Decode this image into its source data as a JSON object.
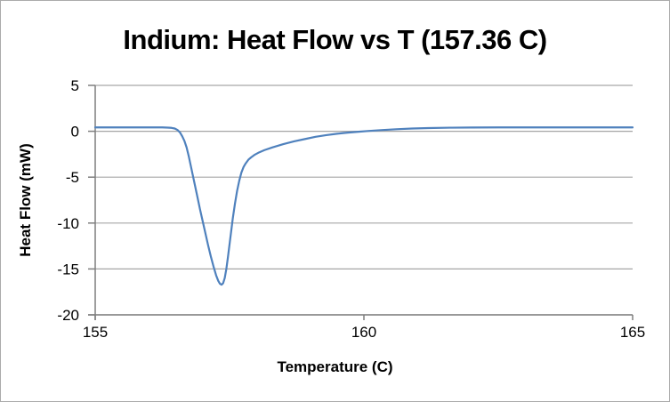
{
  "chart_data": {
    "type": "line",
    "title": "Indium: Heat Flow vs T (157.36 C)",
    "xlabel": "Temperature (C)",
    "ylabel": "Heat Flow (mW)",
    "xlim": [
      155,
      165
    ],
    "ylim": [
      -20,
      5
    ],
    "xticks": [
      155,
      160,
      165
    ],
    "yticks": [
      5,
      0,
      -5,
      -10,
      -15,
      -20
    ],
    "grid": "horizontal",
    "legend": "none",
    "peak_temperature_c": 157.36,
    "peak_min_mw": -16.7,
    "baseline_mw": 0.4,
    "series": [
      {
        "name": "Heat Flow",
        "color": "#4F81BD",
        "points": [
          [
            155.0,
            0.42
          ],
          [
            155.3,
            0.42
          ],
          [
            155.6,
            0.42
          ],
          [
            155.9,
            0.42
          ],
          [
            156.1,
            0.42
          ],
          [
            156.25,
            0.42
          ],
          [
            156.35,
            0.4
          ],
          [
            156.42,
            0.37
          ],
          [
            156.48,
            0.3
          ],
          [
            156.53,
            0.15
          ],
          [
            156.58,
            -0.15
          ],
          [
            156.62,
            -0.55
          ],
          [
            156.66,
            -1.05
          ],
          [
            156.7,
            -1.75
          ],
          [
            156.74,
            -2.7
          ],
          [
            156.78,
            -3.8
          ],
          [
            156.82,
            -4.9
          ],
          [
            156.86,
            -6.0
          ],
          [
            156.9,
            -7.1
          ],
          [
            156.95,
            -8.5
          ],
          [
            157.0,
            -9.8
          ],
          [
            157.05,
            -11.1
          ],
          [
            157.1,
            -12.4
          ],
          [
            157.15,
            -13.6
          ],
          [
            157.2,
            -14.7
          ],
          [
            157.25,
            -15.7
          ],
          [
            157.29,
            -16.3
          ],
          [
            157.32,
            -16.6
          ],
          [
            157.35,
            -16.72
          ],
          [
            157.38,
            -16.55
          ],
          [
            157.41,
            -16.0
          ],
          [
            157.44,
            -15.0
          ],
          [
            157.47,
            -13.7
          ],
          [
            157.5,
            -12.3
          ],
          [
            157.53,
            -10.9
          ],
          [
            157.56,
            -9.5
          ],
          [
            157.6,
            -7.9
          ],
          [
            157.64,
            -6.5
          ],
          [
            157.68,
            -5.4
          ],
          [
            157.72,
            -4.5
          ],
          [
            157.76,
            -3.9
          ],
          [
            157.8,
            -3.5
          ],
          [
            157.85,
            -3.1
          ],
          [
            157.9,
            -2.85
          ],
          [
            157.97,
            -2.55
          ],
          [
            158.05,
            -2.3
          ],
          [
            158.15,
            -2.05
          ],
          [
            158.3,
            -1.75
          ],
          [
            158.5,
            -1.4
          ],
          [
            158.7,
            -1.1
          ],
          [
            158.9,
            -0.85
          ],
          [
            159.1,
            -0.6
          ],
          [
            159.3,
            -0.42
          ],
          [
            159.5,
            -0.27
          ],
          [
            159.7,
            -0.15
          ],
          [
            159.9,
            -0.05
          ],
          [
            160.1,
            0.04
          ],
          [
            160.35,
            0.14
          ],
          [
            160.6,
            0.22
          ],
          [
            160.9,
            0.3
          ],
          [
            161.2,
            0.35
          ],
          [
            161.6,
            0.39
          ],
          [
            162.0,
            0.41
          ],
          [
            162.5,
            0.42
          ],
          [
            163.0,
            0.42
          ],
          [
            163.5,
            0.42
          ],
          [
            164.0,
            0.42
          ],
          [
            164.5,
            0.42
          ],
          [
            165.0,
            0.42
          ]
        ]
      }
    ]
  },
  "style": {
    "line_color": "#4F81BD",
    "grid_color": "#A6A6A6",
    "axis_color": "#7F7F7F",
    "text_color": "#000000",
    "background": "#FFFFFF",
    "border_color": "#ABABAB"
  }
}
